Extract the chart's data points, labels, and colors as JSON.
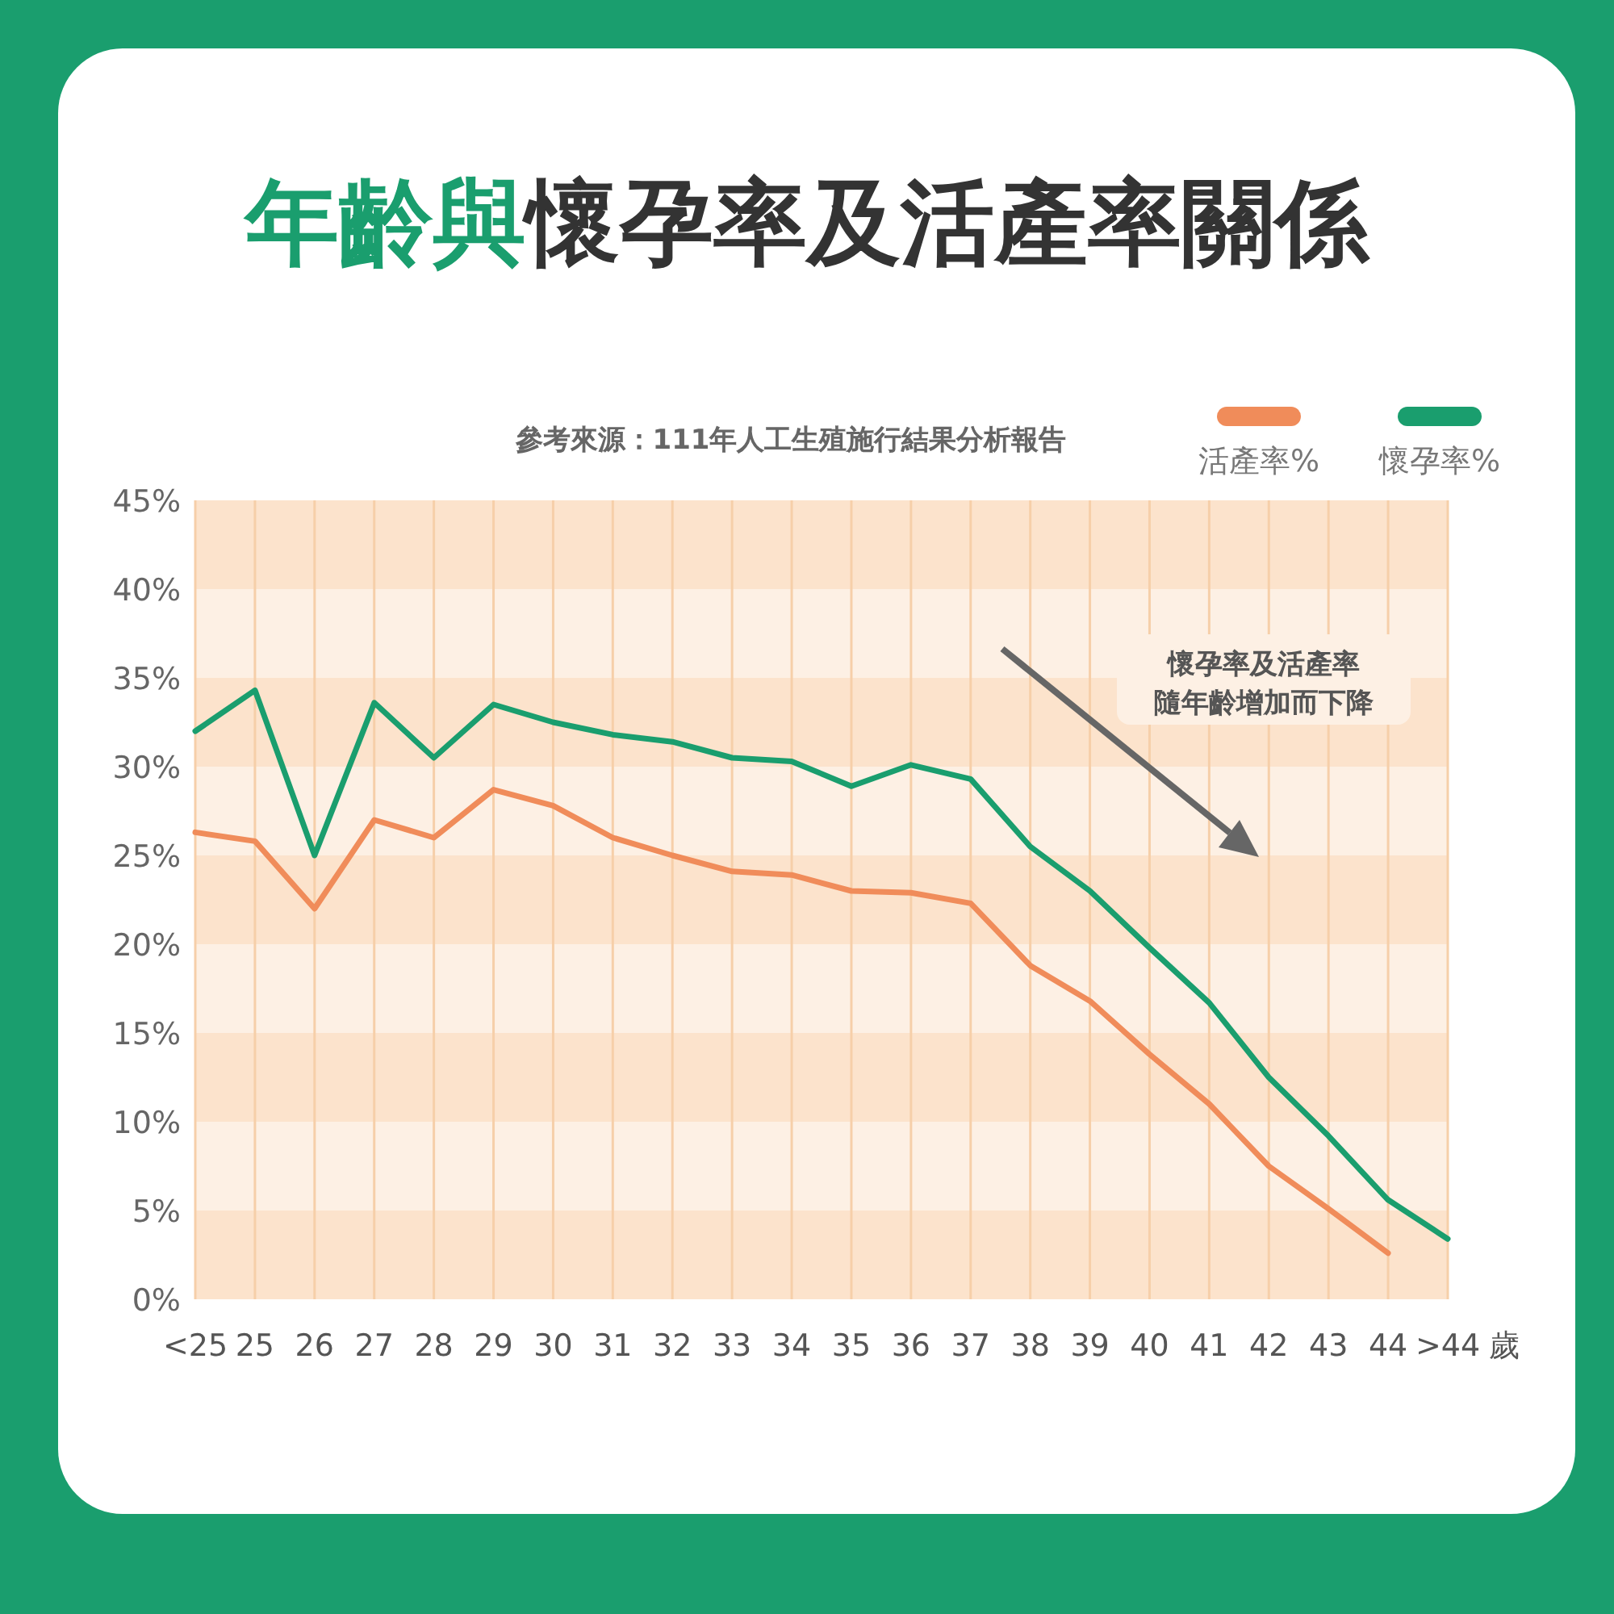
{
  "chart_data": {
    "type": "line",
    "title": "年齡與懷孕率及活產率關係",
    "xlabel": "歲",
    "categories": [
      "<25",
      "25",
      "26",
      "27",
      "28",
      "29",
      "30",
      "31",
      "32",
      "33",
      "34",
      "35",
      "36",
      "37",
      "38",
      "39",
      "40",
      "41",
      "42",
      "43",
      "44",
      ">44"
    ],
    "series": [
      {
        "name": "活產率%",
        "color": "#f08c5a",
        "values": [
          26.3,
          25.8,
          22.0,
          27.0,
          26.0,
          28.7,
          27.8,
          26.0,
          25.0,
          24.1,
          23.9,
          23.0,
          22.9,
          22.3,
          18.8,
          16.8,
          13.8,
          11.0,
          7.5,
          5.1,
          2.6,
          null
        ]
      },
      {
        "name": "懷孕率%",
        "color": "#1a9e6e",
        "values": [
          32.0,
          34.3,
          25.0,
          33.6,
          30.5,
          33.5,
          32.5,
          31.8,
          31.4,
          30.5,
          30.3,
          28.9,
          30.1,
          29.3,
          25.5,
          23.0,
          19.8,
          16.7,
          12.5,
          9.2,
          5.6,
          3.4
        ]
      }
    ],
    "ylim": [
      0,
      45
    ],
    "yticks": [
      {
        "value": 0,
        "label": "0%"
      },
      {
        "value": 5,
        "label": "5%"
      },
      {
        "value": 10,
        "label": "10%"
      },
      {
        "value": 15,
        "label": "15%"
      },
      {
        "value": 20,
        "label": "20%"
      },
      {
        "value": 25,
        "label": "25%"
      },
      {
        "value": 30,
        "label": "30%"
      },
      {
        "value": 35,
        "label": "35%"
      },
      {
        "value": 40,
        "label": "40%"
      },
      {
        "value": 45,
        "label": "45%"
      }
    ],
    "grid": "x",
    "legend": "top right",
    "marker": "none",
    "line_style": "solid",
    "annotations": [
      "參考來源：111年人工生殖施行結果分析報告",
      "懷孕率及活產率",
      "隨年齡增加而下降"
    ]
  }
}
